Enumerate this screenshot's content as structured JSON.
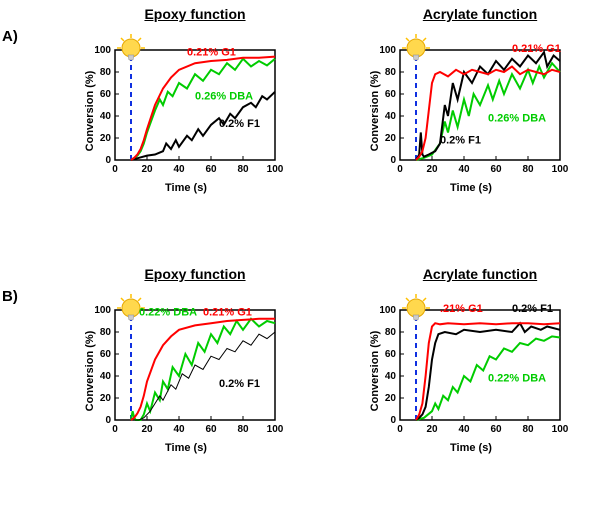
{
  "layout": {
    "panelA_label": "A)",
    "panelB_label": "B)",
    "col1_title": "Epoxy function",
    "col2_title": "Acrylate function"
  },
  "chart_common": {
    "xlabel": "Time (s)",
    "ylabel": "Conversion (%)",
    "xlim": [
      0,
      100
    ],
    "ylim": [
      0,
      100
    ],
    "xtick_step": 20,
    "ytick_step": 20,
    "axis_color": "#000000",
    "line_width": 2,
    "bulb_x": 10
  },
  "series_colors": {
    "G1": "#ff0000",
    "DBA": "#00cc00",
    "F1": "#000000"
  },
  "charts": {
    "A_epoxy": {
      "labels": {
        "G1": "0.21% G1",
        "DBA": "0.26%  DBA",
        "F1": "0.2% F1"
      },
      "data": {
        "G1": [
          [
            10,
            0
          ],
          [
            12,
            2
          ],
          [
            14,
            5
          ],
          [
            16,
            10
          ],
          [
            18,
            18
          ],
          [
            20,
            28
          ],
          [
            25,
            50
          ],
          [
            30,
            65
          ],
          [
            35,
            75
          ],
          [
            40,
            82
          ],
          [
            50,
            88
          ],
          [
            60,
            90
          ],
          [
            70,
            91
          ],
          [
            80,
            93
          ],
          [
            90,
            93
          ],
          [
            100,
            94
          ]
        ],
        "DBA": [
          [
            10,
            0
          ],
          [
            12,
            2
          ],
          [
            14,
            4
          ],
          [
            16,
            8
          ],
          [
            18,
            15
          ],
          [
            20,
            25
          ],
          [
            25,
            45
          ],
          [
            28,
            55
          ],
          [
            30,
            50
          ],
          [
            33,
            62
          ],
          [
            36,
            58
          ],
          [
            40,
            70
          ],
          [
            45,
            65
          ],
          [
            50,
            78
          ],
          [
            55,
            72
          ],
          [
            60,
            82
          ],
          [
            65,
            78
          ],
          [
            70,
            88
          ],
          [
            75,
            82
          ],
          [
            80,
            92
          ],
          [
            85,
            85
          ],
          [
            90,
            90
          ],
          [
            95,
            86
          ],
          [
            100,
            92
          ]
        ],
        "F1": [
          [
            10,
            0
          ],
          [
            15,
            2
          ],
          [
            20,
            4
          ],
          [
            25,
            5
          ],
          [
            30,
            8
          ],
          [
            32,
            15
          ],
          [
            35,
            10
          ],
          [
            38,
            18
          ],
          [
            40,
            12
          ],
          [
            45,
            22
          ],
          [
            48,
            18
          ],
          [
            52,
            28
          ],
          [
            55,
            22
          ],
          [
            60,
            32
          ],
          [
            65,
            38
          ],
          [
            68,
            32
          ],
          [
            72,
            42
          ],
          [
            75,
            38
          ],
          [
            80,
            48
          ],
          [
            85,
            52
          ],
          [
            88,
            48
          ],
          [
            92,
            58
          ],
          [
            95,
            55
          ],
          [
            100,
            62
          ]
        ]
      }
    },
    "A_acryl": {
      "labels": {
        "G1": "0.21% G1",
        "DBA": "0.26% DBA",
        "F1": "0.2% F1"
      },
      "data": {
        "G1": [
          [
            10,
            0
          ],
          [
            12,
            3
          ],
          [
            14,
            8
          ],
          [
            16,
            20
          ],
          [
            18,
            45
          ],
          [
            20,
            70
          ],
          [
            22,
            78
          ],
          [
            25,
            80
          ],
          [
            30,
            76
          ],
          [
            35,
            82
          ],
          [
            40,
            78
          ],
          [
            45,
            82
          ],
          [
            50,
            80
          ],
          [
            55,
            78
          ],
          [
            60,
            82
          ],
          [
            65,
            80
          ],
          [
            70,
            85
          ],
          [
            75,
            78
          ],
          [
            80,
            82
          ],
          [
            85,
            80
          ],
          [
            90,
            78
          ],
          [
            95,
            82
          ],
          [
            100,
            80
          ]
        ],
        "DBA": [
          [
            10,
            0
          ],
          [
            15,
            2
          ],
          [
            20,
            5
          ],
          [
            25,
            15
          ],
          [
            28,
            35
          ],
          [
            30,
            25
          ],
          [
            33,
            45
          ],
          [
            36,
            30
          ],
          [
            40,
            55
          ],
          [
            43,
            40
          ],
          [
            46,
            60
          ],
          [
            50,
            50
          ],
          [
            55,
            68
          ],
          [
            58,
            55
          ],
          [
            62,
            72
          ],
          [
            65,
            60
          ],
          [
            70,
            78
          ],
          [
            75,
            65
          ],
          [
            80,
            82
          ],
          [
            83,
            70
          ],
          [
            87,
            85
          ],
          [
            90,
            75
          ],
          [
            95,
            88
          ],
          [
            100,
            80
          ]
        ],
        "F1": [
          [
            10,
            0
          ],
          [
            12,
            5
          ],
          [
            13,
            25
          ],
          [
            14,
            5
          ],
          [
            15,
            3
          ],
          [
            18,
            5
          ],
          [
            22,
            8
          ],
          [
            25,
            15
          ],
          [
            28,
            50
          ],
          [
            30,
            40
          ],
          [
            33,
            70
          ],
          [
            36,
            55
          ],
          [
            40,
            80
          ],
          [
            45,
            70
          ],
          [
            50,
            85
          ],
          [
            55,
            78
          ],
          [
            60,
            90
          ],
          [
            65,
            82
          ],
          [
            70,
            92
          ],
          [
            75,
            85
          ],
          [
            80,
            95
          ],
          [
            85,
            88
          ],
          [
            90,
            98
          ],
          [
            92,
            85
          ],
          [
            96,
            95
          ],
          [
            100,
            90
          ]
        ]
      }
    },
    "B_epoxy": {
      "labels": {
        "G1": "0.21% G1",
        "DBA": "0.22% DBA",
        "F1": "0.2% F1"
      },
      "data": {
        "G1": [
          [
            10,
            0
          ],
          [
            12,
            2
          ],
          [
            14,
            6
          ],
          [
            16,
            12
          ],
          [
            18,
            22
          ],
          [
            20,
            35
          ],
          [
            25,
            55
          ],
          [
            30,
            68
          ],
          [
            35,
            76
          ],
          [
            40,
            82
          ],
          [
            50,
            86
          ],
          [
            60,
            88
          ],
          [
            70,
            90
          ],
          [
            80,
            91
          ],
          [
            90,
            92
          ],
          [
            100,
            92
          ]
        ],
        "DBA": [
          [
            10,
            0
          ],
          [
            11,
            8
          ],
          [
            12,
            2
          ],
          [
            13,
            0
          ],
          [
            16,
            0
          ],
          [
            18,
            5
          ],
          [
            20,
            15
          ],
          [
            22,
            8
          ],
          [
            25,
            25
          ],
          [
            28,
            18
          ],
          [
            30,
            35
          ],
          [
            33,
            28
          ],
          [
            36,
            48
          ],
          [
            40,
            40
          ],
          [
            44,
            60
          ],
          [
            48,
            50
          ],
          [
            52,
            70
          ],
          [
            56,
            62
          ],
          [
            60,
            78
          ],
          [
            64,
            70
          ],
          [
            68,
            85
          ],
          [
            72,
            78
          ],
          [
            76,
            90
          ],
          [
            80,
            82
          ],
          [
            85,
            92
          ],
          [
            90,
            85
          ],
          [
            95,
            90
          ],
          [
            100,
            88
          ]
        ],
        "F1": [
          [
            10,
            0
          ],
          [
            15,
            0
          ],
          [
            18,
            2
          ],
          [
            22,
            8
          ],
          [
            25,
            15
          ],
          [
            28,
            22
          ],
          [
            30,
            18
          ],
          [
            35,
            32
          ],
          [
            38,
            28
          ],
          [
            42,
            42
          ],
          [
            46,
            38
          ],
          [
            50,
            50
          ],
          [
            55,
            46
          ],
          [
            60,
            58
          ],
          [
            65,
            55
          ],
          [
            70,
            65
          ],
          [
            75,
            62
          ],
          [
            80,
            72
          ],
          [
            85,
            68
          ],
          [
            90,
            78
          ],
          [
            95,
            74
          ],
          [
            100,
            80
          ]
        ]
      }
    },
    "B_acryl": {
      "labels": {
        "G1": ".21% G1",
        "DBA": "0.22% DBA",
        "F1": "0.2% F1"
      },
      "data": {
        "G1": [
          [
            10,
            0
          ],
          [
            12,
            5
          ],
          [
            14,
            15
          ],
          [
            16,
            40
          ],
          [
            18,
            70
          ],
          [
            20,
            85
          ],
          [
            22,
            88
          ],
          [
            25,
            87
          ],
          [
            30,
            88
          ],
          [
            40,
            87
          ],
          [
            50,
            88
          ],
          [
            60,
            87
          ],
          [
            70,
            88
          ],
          [
            80,
            88
          ],
          [
            90,
            87
          ],
          [
            100,
            88
          ]
        ],
        "DBA": [
          [
            10,
            0
          ],
          [
            15,
            2
          ],
          [
            20,
            8
          ],
          [
            22,
            15
          ],
          [
            24,
            10
          ],
          [
            27,
            22
          ],
          [
            30,
            18
          ],
          [
            33,
            30
          ],
          [
            36,
            25
          ],
          [
            40,
            40
          ],
          [
            44,
            35
          ],
          [
            48,
            50
          ],
          [
            52,
            45
          ],
          [
            56,
            58
          ],
          [
            60,
            55
          ],
          [
            65,
            65
          ],
          [
            70,
            62
          ],
          [
            75,
            70
          ],
          [
            80,
            68
          ],
          [
            85,
            74
          ],
          [
            90,
            72
          ],
          [
            95,
            76
          ],
          [
            100,
            75
          ]
        ],
        "F1": [
          [
            10,
            0
          ],
          [
            12,
            2
          ],
          [
            14,
            5
          ],
          [
            16,
            12
          ],
          [
            18,
            30
          ],
          [
            20,
            55
          ],
          [
            22,
            70
          ],
          [
            24,
            78
          ],
          [
            28,
            80
          ],
          [
            35,
            78
          ],
          [
            40,
            82
          ],
          [
            50,
            80
          ],
          [
            60,
            82
          ],
          [
            70,
            80
          ],
          [
            75,
            88
          ],
          [
            78,
            80
          ],
          [
            82,
            85
          ],
          [
            88,
            82
          ],
          [
            92,
            85
          ],
          [
            100,
            82
          ]
        ]
      }
    }
  },
  "label_pos": {
    "A_epoxy": {
      "G1": [
        45,
        95
      ],
      "DBA": [
        50,
        55
      ],
      "F1": [
        65,
        30
      ]
    },
    "A_acryl": {
      "G1": [
        70,
        98
      ],
      "DBA": [
        55,
        35
      ],
      "F1": [
        25,
        15
      ]
    },
    "B_epoxy": {
      "G1": [
        55,
        95
      ],
      "DBA": [
        15,
        95
      ],
      "F1": [
        65,
        30
      ]
    },
    "B_acryl": {
      "G1": [
        25,
        98
      ],
      "DBA": [
        55,
        35
      ],
      "F1": [
        70,
        98
      ]
    }
  }
}
